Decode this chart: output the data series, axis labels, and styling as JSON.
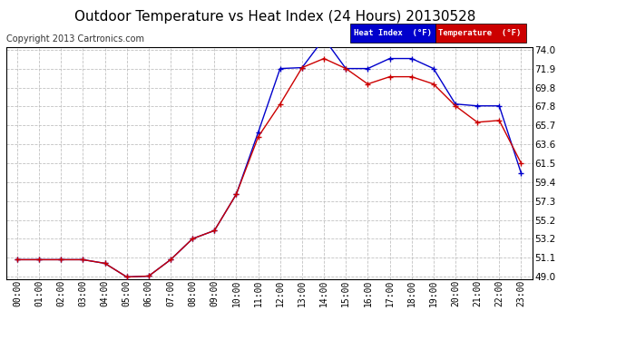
{
  "title": "Outdoor Temperature vs Heat Index (24 Hours) 20130528",
  "copyright": "Copyright 2013 Cartronics.com",
  "hours": [
    "00:00",
    "01:00",
    "02:00",
    "03:00",
    "04:00",
    "05:00",
    "06:00",
    "07:00",
    "08:00",
    "09:00",
    "10:00",
    "11:00",
    "12:00",
    "13:00",
    "14:00",
    "15:00",
    "16:00",
    "17:00",
    "18:00",
    "19:00",
    "20:00",
    "21:00",
    "22:00",
    "23:00"
  ],
  "temperature": [
    50.9,
    50.9,
    50.9,
    50.9,
    50.5,
    49.0,
    49.1,
    50.9,
    53.2,
    54.1,
    58.1,
    64.4,
    68.0,
    72.0,
    73.0,
    71.9,
    70.2,
    71.0,
    71.0,
    70.2,
    67.8,
    66.0,
    66.2,
    61.5
  ],
  "heat_index": [
    50.9,
    50.9,
    50.9,
    50.9,
    50.5,
    49.0,
    49.1,
    50.9,
    53.2,
    54.1,
    58.1,
    64.9,
    71.9,
    72.0,
    75.2,
    71.9,
    71.9,
    73.0,
    73.0,
    71.9,
    68.0,
    67.8,
    67.8,
    60.4
  ],
  "ylim_min": 49.0,
  "ylim_max": 74.0,
  "yticks": [
    49.0,
    51.1,
    53.2,
    55.2,
    57.3,
    59.4,
    61.5,
    63.6,
    65.7,
    67.8,
    69.8,
    71.9,
    74.0
  ],
  "temp_color": "#cc0000",
  "heat_color": "#0000cc",
  "bg_color": "#ffffff",
  "grid_color": "#bbbbbb",
  "legend_heat_bg": "#0000cc",
  "legend_temp_bg": "#cc0000",
  "title_fontsize": 11,
  "copyright_fontsize": 7,
  "tick_fontsize": 7,
  "ytick_fontsize": 7.5
}
